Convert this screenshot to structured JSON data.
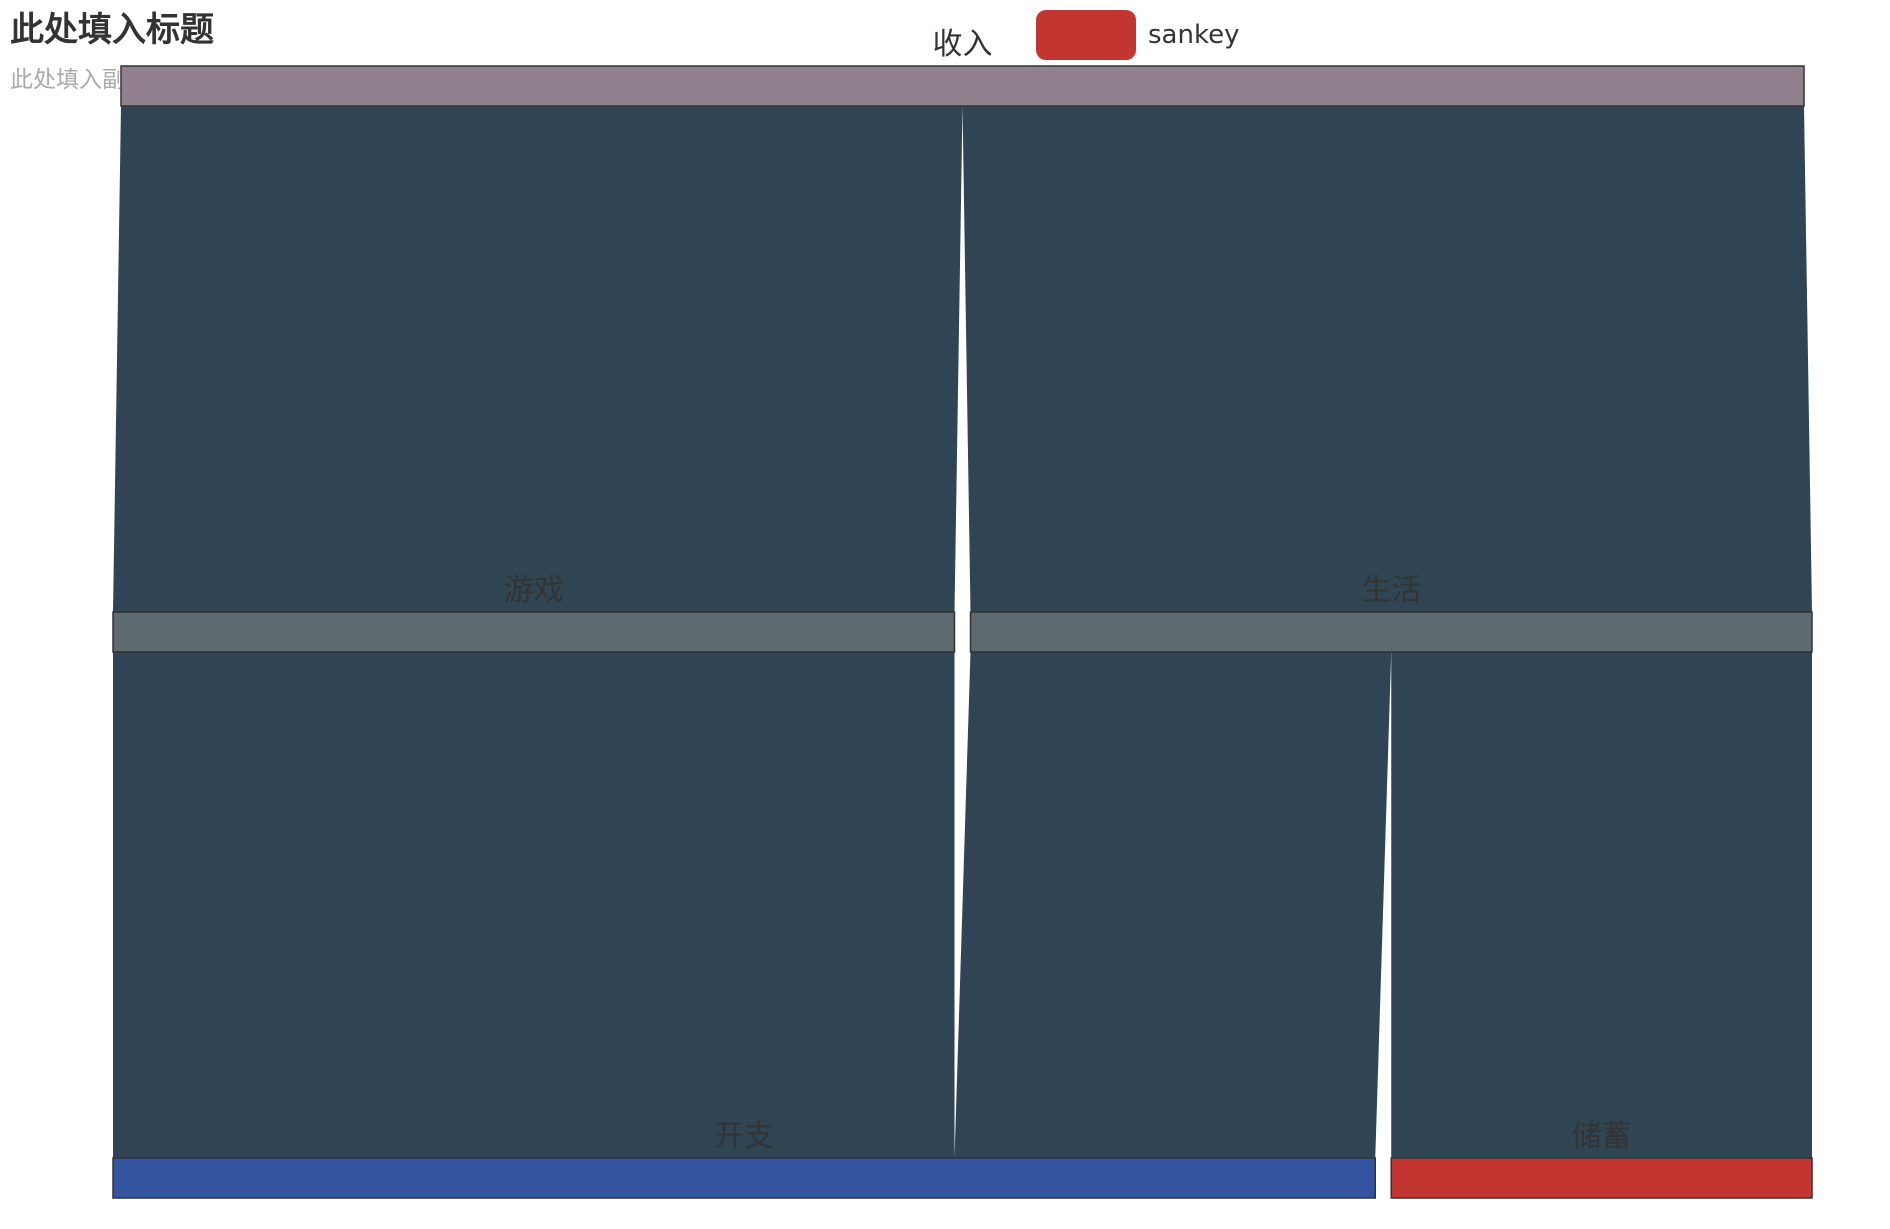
{
  "title": "此处填入标题",
  "subtitle": "此处填入副标题",
  "legend": {
    "label": "sankey",
    "color": "#c23531"
  },
  "chart_data": {
    "type": "sankey",
    "series_name": "sankey",
    "orient": "vertical",
    "nodes": [
      {
        "name": "收入",
        "color": "#91818f"
      },
      {
        "name": "游戏",
        "color": "#5d6a70"
      },
      {
        "name": "生活",
        "color": "#5d6a70"
      },
      {
        "name": "开支",
        "color": "#3555a0"
      },
      {
        "name": "储蓄",
        "color": "#c23531"
      }
    ],
    "links": [
      {
        "source": "收入",
        "target": "游戏",
        "value": 1
      },
      {
        "source": "收入",
        "target": "生活",
        "value": 1
      },
      {
        "source": "游戏",
        "target": "开支",
        "value": 1
      },
      {
        "source": "生活",
        "target": "开支",
        "value": 0.5
      },
      {
        "source": "生活",
        "target": "储蓄",
        "value": 0.5
      }
    ],
    "link_color": "#2f4554"
  }
}
